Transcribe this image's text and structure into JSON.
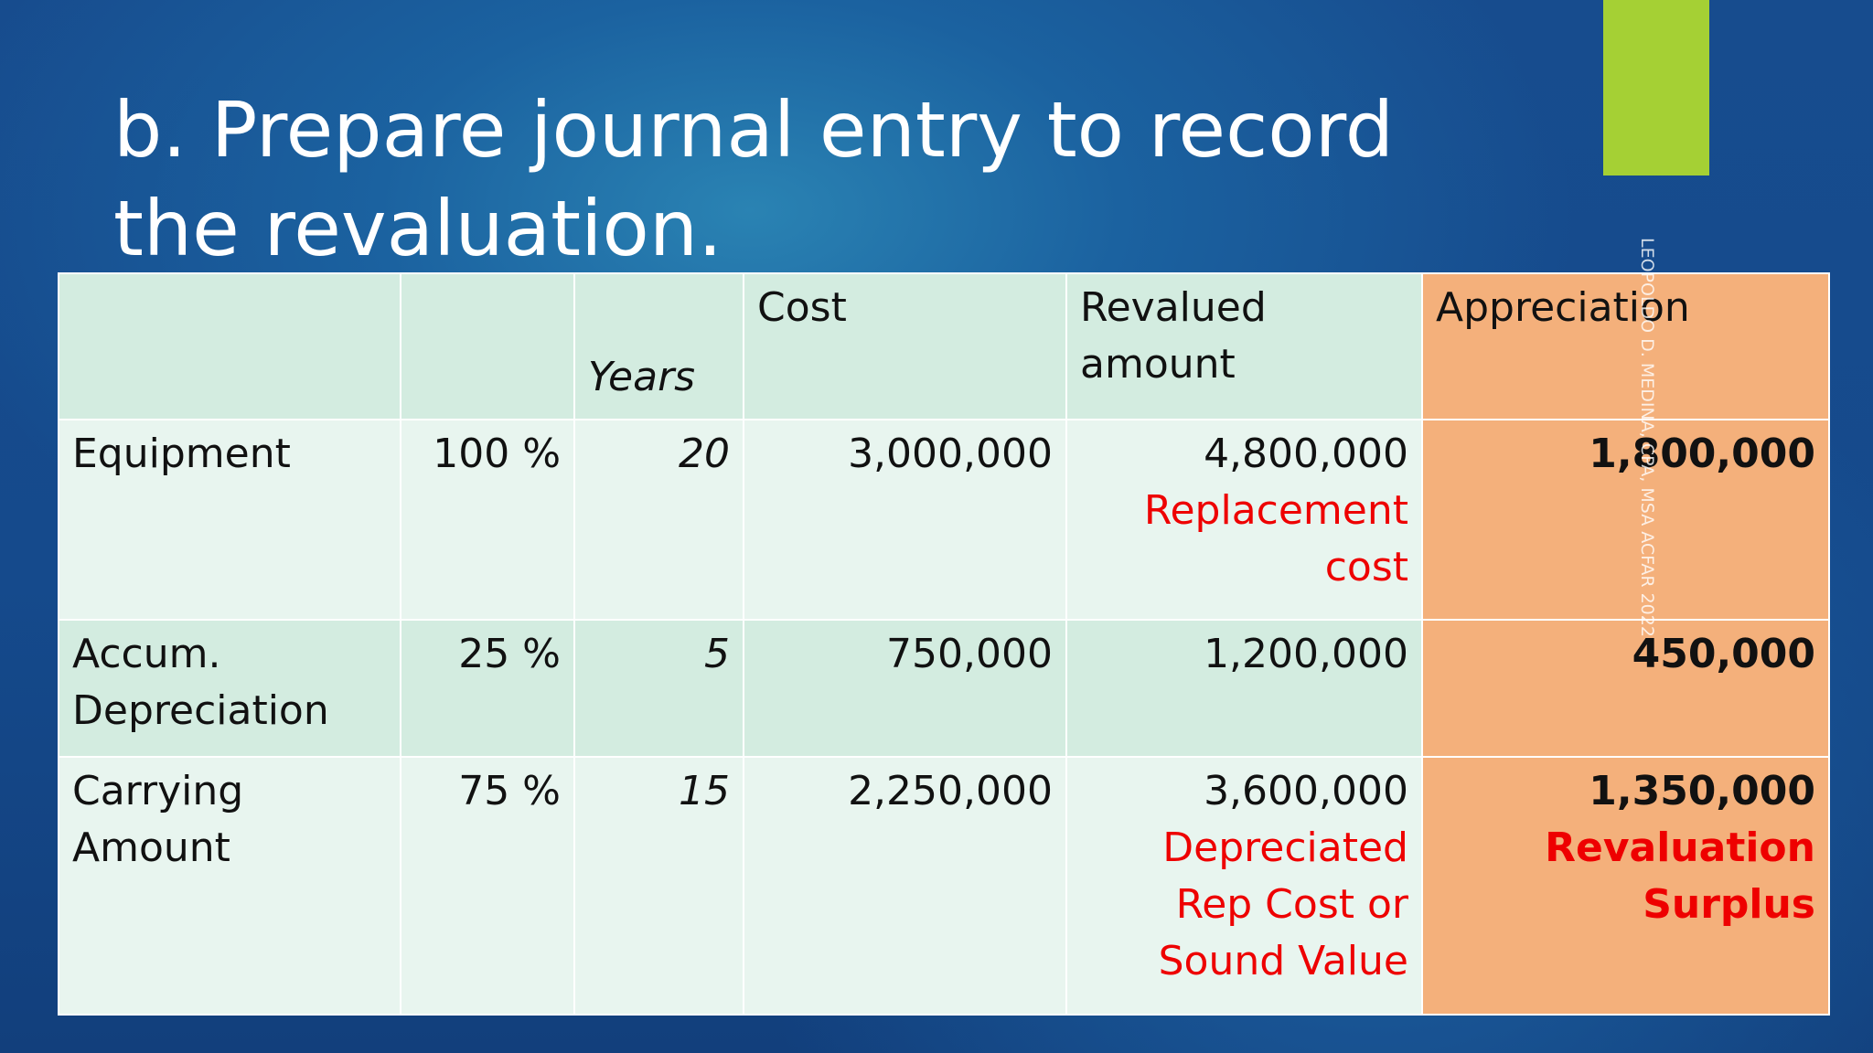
{
  "slide": {
    "title": "b. Prepare journal entry to record the revaluation.",
    "watermark": "LEOPOLDO D. MEDINA, CPA, MSA ACFAR 2022"
  },
  "table": {
    "headers": {
      "label": "",
      "percent": "",
      "years": "Years",
      "cost": "Cost",
      "revalued_line1": "Revalued",
      "revalued_line2": "amount",
      "appreciation": "Appreciation"
    },
    "rows": [
      {
        "label_line1": "Equipment",
        "label_line2": "",
        "percent": "100 %",
        "years": "20",
        "cost": "3,000,000",
        "revalued": "4,800,000",
        "revalued_note": [
          "Replacement",
          "cost"
        ],
        "appreciation": "1,800,000",
        "appreciation_note": []
      },
      {
        "label_line1": "Accum.",
        "label_line2": "Depreciation",
        "percent": "25 %",
        "years": "5",
        "cost": "750,000",
        "revalued": "1,200,000",
        "revalued_note": [],
        "appreciation": "450,000",
        "appreciation_note": []
      },
      {
        "label_line1": "Carrying",
        "label_line2": "Amount",
        "percent": "75 %",
        "years": "15",
        "cost": "2,250,000",
        "revalued": "3,600,000",
        "revalued_note": [
          "Depreciated",
          "Rep Cost or",
          "Sound Value"
        ],
        "appreciation": "1,350,000",
        "appreciation_note": [
          "Revaluation",
          "Surplus"
        ]
      }
    ]
  },
  "colors": {
    "header_fill": "#d3ece0",
    "row_fill": "#e8f5ef",
    "appreciation_fill": "#f4b07b",
    "accent_green": "#a5d034",
    "note_red": "#ee0000"
  }
}
